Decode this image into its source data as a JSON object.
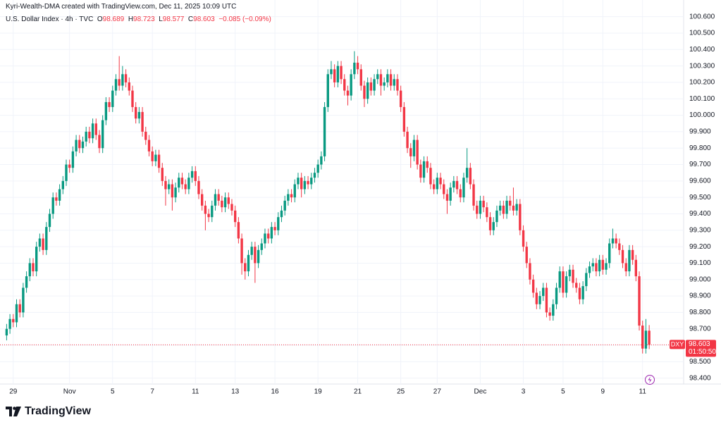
{
  "attribution": "Kyri-Wealth-DMA created with TradingView.com, Dec 11, 2025 10:09 UTC",
  "brand": "TradingView",
  "chart_data": {
    "type": "candlestick",
    "title": "U.S. Dollar Index · 4h · TVC",
    "ohlc_labels": [
      "O",
      "H",
      "L",
      "C"
    ],
    "change": "−0.085 (−0.09%)",
    "symbol": "DXY",
    "countdown": "01:50:50",
    "up_color": "#089981",
    "down_color": "#f23645",
    "grid": true,
    "xlim": [
      -2,
      204.4
    ],
    "ylim": [
      98.3,
      100.65
    ],
    "xticks": [
      {
        "value": 2,
        "label": "29"
      },
      {
        "value": 19,
        "label": "Nov"
      },
      {
        "value": 32,
        "label": "5"
      },
      {
        "value": 44,
        "label": "7"
      },
      {
        "value": 57,
        "label": "11"
      },
      {
        "value": 69,
        "label": "13"
      },
      {
        "value": 81,
        "label": "16"
      },
      {
        "value": 94,
        "label": "19"
      },
      {
        "value": 106,
        "label": "21"
      },
      {
        "value": 119,
        "label": "25"
      },
      {
        "value": 130,
        "label": "27"
      },
      {
        "value": 143,
        "label": "Dec"
      },
      {
        "value": 156,
        "label": "3"
      },
      {
        "value": 168,
        "label": "5"
      },
      {
        "value": 180,
        "label": "9"
      },
      {
        "value": 192,
        "label": "11"
      }
    ],
    "yticks": [
      {
        "value": 98.4,
        "label": "98.400"
      },
      {
        "value": 98.5,
        "label": "98.500"
      },
      {
        "value": 98.6,
        "label": "98.600"
      },
      {
        "value": 98.7,
        "label": "98.700"
      },
      {
        "value": 98.8,
        "label": "98.800"
      },
      {
        "value": 98.9,
        "label": "98.900"
      },
      {
        "value": 99.0,
        "label": "99.000"
      },
      {
        "value": 99.1,
        "label": "99.100"
      },
      {
        "value": 99.2,
        "label": "99.200"
      },
      {
        "value": 99.3,
        "label": "99.300"
      },
      {
        "value": 99.4,
        "label": "99.400"
      },
      {
        "value": 99.5,
        "label": "99.500"
      },
      {
        "value": 99.6,
        "label": "99.600"
      },
      {
        "value": 99.7,
        "label": "99.700"
      },
      {
        "value": 99.8,
        "label": "99.800"
      },
      {
        "value": 99.9,
        "label": "99.900"
      },
      {
        "value": 100.0,
        "label": "100.000"
      },
      {
        "value": 100.1,
        "label": "100.100"
      },
      {
        "value": 100.2,
        "label": "100.200"
      },
      {
        "value": 100.3,
        "label": "100.300"
      },
      {
        "value": 100.4,
        "label": "100.400"
      },
      {
        "value": 100.5,
        "label": "100.500"
      },
      {
        "value": 100.6,
        "label": "100.600"
      }
    ],
    "ohlc": [
      [
        98.66,
        98.73,
        98.63,
        98.7
      ],
      [
        98.7,
        98.79,
        98.67,
        98.76
      ],
      [
        98.76,
        98.79,
        98.71,
        98.74
      ],
      [
        98.74,
        98.88,
        98.71,
        98.85
      ],
      [
        98.85,
        98.88,
        98.77,
        98.8
      ],
      [
        98.8,
        98.98,
        98.77,
        98.95
      ],
      [
        98.95,
        99.05,
        98.92,
        99.02
      ],
      [
        99.02,
        99.13,
        98.99,
        99.1
      ],
      [
        99.1,
        99.13,
        99.02,
        99.05
      ],
      [
        99.05,
        99.23,
        99.02,
        99.2
      ],
      [
        99.2,
        99.28,
        99.17,
        99.25
      ],
      [
        99.25,
        99.28,
        99.15,
        99.18
      ],
      [
        99.18,
        99.35,
        99.15,
        99.32
      ],
      [
        99.32,
        99.43,
        99.29,
        99.4
      ],
      [
        99.4,
        99.53,
        99.37,
        99.5
      ],
      [
        99.5,
        99.53,
        99.45,
        99.48
      ],
      [
        99.48,
        99.58,
        99.45,
        99.55
      ],
      [
        99.55,
        99.63,
        99.52,
        99.6
      ],
      [
        99.6,
        99.73,
        99.57,
        99.7
      ],
      [
        99.7,
        99.73,
        99.65,
        99.68
      ],
      [
        99.68,
        99.81,
        99.65,
        99.78
      ],
      [
        99.78,
        99.88,
        99.75,
        99.85
      ],
      [
        99.85,
        99.88,
        99.77,
        99.8
      ],
      [
        99.8,
        99.87,
        99.77,
        99.84
      ],
      [
        99.84,
        99.93,
        99.81,
        99.9
      ],
      [
        99.9,
        99.93,
        99.83,
        99.86
      ],
      [
        99.86,
        99.98,
        99.83,
        99.95
      ],
      [
        99.95,
        99.98,
        99.85,
        99.88
      ],
      [
        99.88,
        99.91,
        99.77,
        99.8
      ],
      [
        99.8,
        100.0,
        99.77,
        99.97
      ],
      [
        99.97,
        100.11,
        99.94,
        100.08
      ],
      [
        100.08,
        100.11,
        100.02,
        100.05
      ],
      [
        100.05,
        100.18,
        100.02,
        100.15
      ],
      [
        100.15,
        100.25,
        100.12,
        100.22
      ],
      [
        100.22,
        100.36,
        100.15,
        100.18
      ],
      [
        100.18,
        100.3,
        100.15,
        100.25
      ],
      [
        100.25,
        100.28,
        100.17,
        100.2
      ],
      [
        100.2,
        100.23,
        100.12,
        100.15
      ],
      [
        100.15,
        100.18,
        100.02,
        100.05
      ],
      [
        100.05,
        100.08,
        99.95,
        99.98
      ],
      [
        99.98,
        100.05,
        99.95,
        100.02
      ],
      [
        100.02,
        100.05,
        99.87,
        99.9
      ],
      [
        99.9,
        99.93,
        99.82,
        99.85
      ],
      [
        99.85,
        99.88,
        99.75,
        99.78
      ],
      [
        99.78,
        99.81,
        99.69,
        99.72
      ],
      [
        99.72,
        99.79,
        99.69,
        99.76
      ],
      [
        99.76,
        99.79,
        99.65,
        99.68
      ],
      [
        99.68,
        99.71,
        99.57,
        99.6
      ],
      [
        99.6,
        99.63,
        99.45,
        99.55
      ],
      [
        99.55,
        99.61,
        99.52,
        99.58
      ],
      [
        99.58,
        99.61,
        99.42,
        99.5
      ],
      [
        99.5,
        99.59,
        99.47,
        99.56
      ],
      [
        99.56,
        99.65,
        99.53,
        99.62
      ],
      [
        99.62,
        99.65,
        99.55,
        99.58
      ],
      [
        99.58,
        99.61,
        99.52,
        99.55
      ],
      [
        99.55,
        99.65,
        99.52,
        99.62
      ],
      [
        99.62,
        99.69,
        99.59,
        99.66
      ],
      [
        99.66,
        99.69,
        99.57,
        99.6
      ],
      [
        99.6,
        99.63,
        99.49,
        99.52
      ],
      [
        99.52,
        99.55,
        99.42,
        99.45
      ],
      [
        99.45,
        99.48,
        99.3,
        99.4
      ],
      [
        99.4,
        99.43,
        99.35,
        99.38
      ],
      [
        99.38,
        99.48,
        99.35,
        99.45
      ],
      [
        99.45,
        99.55,
        99.42,
        99.52
      ],
      [
        99.52,
        99.55,
        99.45,
        99.48
      ],
      [
        99.48,
        99.51,
        99.41,
        99.44
      ],
      [
        99.44,
        99.53,
        99.41,
        99.5
      ],
      [
        99.5,
        99.53,
        99.43,
        99.46
      ],
      [
        99.46,
        99.49,
        99.39,
        99.42
      ],
      [
        99.42,
        99.45,
        99.32,
        99.35
      ],
      [
        99.35,
        99.38,
        99.22,
        99.25
      ],
      [
        99.25,
        99.28,
        99.03,
        99.1
      ],
      [
        99.1,
        99.13,
        99.0,
        99.05
      ],
      [
        99.05,
        99.18,
        99.02,
        99.15
      ],
      [
        99.15,
        99.23,
        99.12,
        99.2
      ],
      [
        99.2,
        99.23,
        98.98,
        99.1
      ],
      [
        99.1,
        99.21,
        99.07,
        99.18
      ],
      [
        99.18,
        99.25,
        99.15,
        99.22
      ],
      [
        99.22,
        99.31,
        99.19,
        99.28
      ],
      [
        99.28,
        99.31,
        99.22,
        99.25
      ],
      [
        99.25,
        99.35,
        99.22,
        99.32
      ],
      [
        99.32,
        99.35,
        99.27,
        99.3
      ],
      [
        99.3,
        99.41,
        99.27,
        99.38
      ],
      [
        99.38,
        99.45,
        99.35,
        99.42
      ],
      [
        99.42,
        99.51,
        99.39,
        99.48
      ],
      [
        99.48,
        99.55,
        99.45,
        99.52
      ],
      [
        99.52,
        99.55,
        99.47,
        99.5
      ],
      [
        99.5,
        99.61,
        99.47,
        99.58
      ],
      [
        99.58,
        99.65,
        99.55,
        99.62
      ],
      [
        99.62,
        99.65,
        99.5,
        99.55
      ],
      [
        99.55,
        99.63,
        99.52,
        99.6
      ],
      [
        99.6,
        99.63,
        99.55,
        99.58
      ],
      [
        99.58,
        99.65,
        99.55,
        99.62
      ],
      [
        99.62,
        99.68,
        99.59,
        99.65
      ],
      [
        99.65,
        99.73,
        99.62,
        99.7
      ],
      [
        99.7,
        99.78,
        99.67,
        99.75
      ],
      [
        99.75,
        100.08,
        99.72,
        100.05
      ],
      [
        100.05,
        100.28,
        100.02,
        100.25
      ],
      [
        100.25,
        100.33,
        100.22,
        100.28
      ],
      [
        100.28,
        100.31,
        100.17,
        100.2
      ],
      [
        100.2,
        100.33,
        100.17,
        100.3
      ],
      [
        100.3,
        100.33,
        100.19,
        100.22
      ],
      [
        100.22,
        100.25,
        100.12,
        100.15
      ],
      [
        100.15,
        100.18,
        100.06,
        100.12
      ],
      [
        100.12,
        100.28,
        100.09,
        100.25
      ],
      [
        100.25,
        100.39,
        100.22,
        100.32
      ],
      [
        100.32,
        100.36,
        100.25,
        100.28
      ],
      [
        100.28,
        100.31,
        100.15,
        100.18
      ],
      [
        100.18,
        100.21,
        100.05,
        100.1
      ],
      [
        100.1,
        100.23,
        100.07,
        100.2
      ],
      [
        100.2,
        100.23,
        100.12,
        100.15
      ],
      [
        100.15,
        100.25,
        100.12,
        100.22
      ],
      [
        100.22,
        100.28,
        100.19,
        100.25
      ],
      [
        100.25,
        100.28,
        100.12,
        100.18
      ],
      [
        100.18,
        100.23,
        100.15,
        100.2
      ],
      [
        100.2,
        100.28,
        100.17,
        100.25
      ],
      [
        100.25,
        100.28,
        100.15,
        100.18
      ],
      [
        100.18,
        100.25,
        100.15,
        100.22
      ],
      [
        100.22,
        100.25,
        100.12,
        100.15
      ],
      [
        100.15,
        100.18,
        100.02,
        100.05
      ],
      [
        100.05,
        100.08,
        99.87,
        99.9
      ],
      [
        99.9,
        99.93,
        99.77,
        99.8
      ],
      [
        99.8,
        99.83,
        99.68,
        99.75
      ],
      [
        99.75,
        99.88,
        99.72,
        99.85
      ],
      [
        99.85,
        99.88,
        99.67,
        99.7
      ],
      [
        99.7,
        99.73,
        99.59,
        99.62
      ],
      [
        99.62,
        99.75,
        99.59,
        99.72
      ],
      [
        99.72,
        99.75,
        99.65,
        99.68
      ],
      [
        99.68,
        99.71,
        99.55,
        99.58
      ],
      [
        99.58,
        99.61,
        99.52,
        99.55
      ],
      [
        99.55,
        99.65,
        99.52,
        99.62
      ],
      [
        99.62,
        99.65,
        99.55,
        99.58
      ],
      [
        99.58,
        99.61,
        99.49,
        99.52
      ],
      [
        99.52,
        99.55,
        99.4,
        99.48
      ],
      [
        99.48,
        99.59,
        99.45,
        99.56
      ],
      [
        99.56,
        99.63,
        99.53,
        99.6
      ],
      [
        99.6,
        99.63,
        99.52,
        99.55
      ],
      [
        99.55,
        99.58,
        99.47,
        99.5
      ],
      [
        99.5,
        99.65,
        99.47,
        99.62
      ],
      [
        99.62,
        99.8,
        99.59,
        99.68
      ],
      [
        99.68,
        99.71,
        99.55,
        99.58
      ],
      [
        99.58,
        99.61,
        99.42,
        99.45
      ],
      [
        99.45,
        99.48,
        99.37,
        99.4
      ],
      [
        99.4,
        99.51,
        99.37,
        99.48
      ],
      [
        99.48,
        99.51,
        99.41,
        99.44
      ],
      [
        99.44,
        99.47,
        99.35,
        99.38
      ],
      [
        99.38,
        99.41,
        99.27,
        99.3
      ],
      [
        99.3,
        99.38,
        99.27,
        99.35
      ],
      [
        99.35,
        99.45,
        99.32,
        99.42
      ],
      [
        99.42,
        99.48,
        99.39,
        99.45
      ],
      [
        99.45,
        99.48,
        99.37,
        99.4
      ],
      [
        99.4,
        99.51,
        99.37,
        99.48
      ],
      [
        99.48,
        99.51,
        99.42,
        99.45
      ],
      [
        99.45,
        99.56,
        99.39,
        99.42
      ],
      [
        99.42,
        99.49,
        99.39,
        99.46
      ],
      [
        99.46,
        99.49,
        99.27,
        99.3
      ],
      [
        99.3,
        99.33,
        99.17,
        99.2
      ],
      [
        99.2,
        99.23,
        99.07,
        99.1
      ],
      [
        99.1,
        99.13,
        98.97,
        99.0
      ],
      [
        99.0,
        99.03,
        98.89,
        98.92
      ],
      [
        98.92,
        98.95,
        98.82,
        98.85
      ],
      [
        98.85,
        98.93,
        98.82,
        98.9
      ],
      [
        98.9,
        98.98,
        98.87,
        98.95
      ],
      [
        98.95,
        98.98,
        98.77,
        98.8
      ],
      [
        98.8,
        98.83,
        98.75,
        98.78
      ],
      [
        98.78,
        98.88,
        98.75,
        98.85
      ],
      [
        98.85,
        98.98,
        98.82,
        98.95
      ],
      [
        98.95,
        99.08,
        98.92,
        99.05
      ],
      [
        99.05,
        99.08,
        98.89,
        98.92
      ],
      [
        98.92,
        99.05,
        98.89,
        99.02
      ],
      [
        99.02,
        99.09,
        98.99,
        99.06
      ],
      [
        99.06,
        99.09,
        98.95,
        98.98
      ],
      [
        98.98,
        99.01,
        98.92,
        98.95
      ],
      [
        98.95,
        98.98,
        98.85,
        98.88
      ],
      [
        98.88,
        98.99,
        98.85,
        98.96
      ],
      [
        98.96,
        99.07,
        98.93,
        99.04
      ],
      [
        99.04,
        99.11,
        99.01,
        99.08
      ],
      [
        99.08,
        99.13,
        99.05,
        99.1
      ],
      [
        99.1,
        99.13,
        99.02,
        99.05
      ],
      [
        99.05,
        99.15,
        99.02,
        99.12
      ],
      [
        99.12,
        99.15,
        99.03,
        99.06
      ],
      [
        99.06,
        99.13,
        99.03,
        99.1
      ],
      [
        99.1,
        99.25,
        99.07,
        99.22
      ],
      [
        99.22,
        99.31,
        99.19,
        99.25
      ],
      [
        99.25,
        99.28,
        99.19,
        99.22
      ],
      [
        99.22,
        99.25,
        99.15,
        99.18
      ],
      [
        99.18,
        99.21,
        99.07,
        99.1
      ],
      [
        99.1,
        99.13,
        99.02,
        99.05
      ],
      [
        99.05,
        99.21,
        99.02,
        99.18
      ],
      [
        99.18,
        99.21,
        99.09,
        99.12
      ],
      [
        99.12,
        99.15,
        98.99,
        99.02
      ],
      [
        99.02,
        99.05,
        98.69,
        98.72
      ],
      [
        98.72,
        98.75,
        98.55,
        98.58
      ],
      [
        98.58,
        98.76,
        98.55,
        98.689
      ],
      [
        98.689,
        98.723,
        98.577,
        98.603
      ]
    ]
  }
}
